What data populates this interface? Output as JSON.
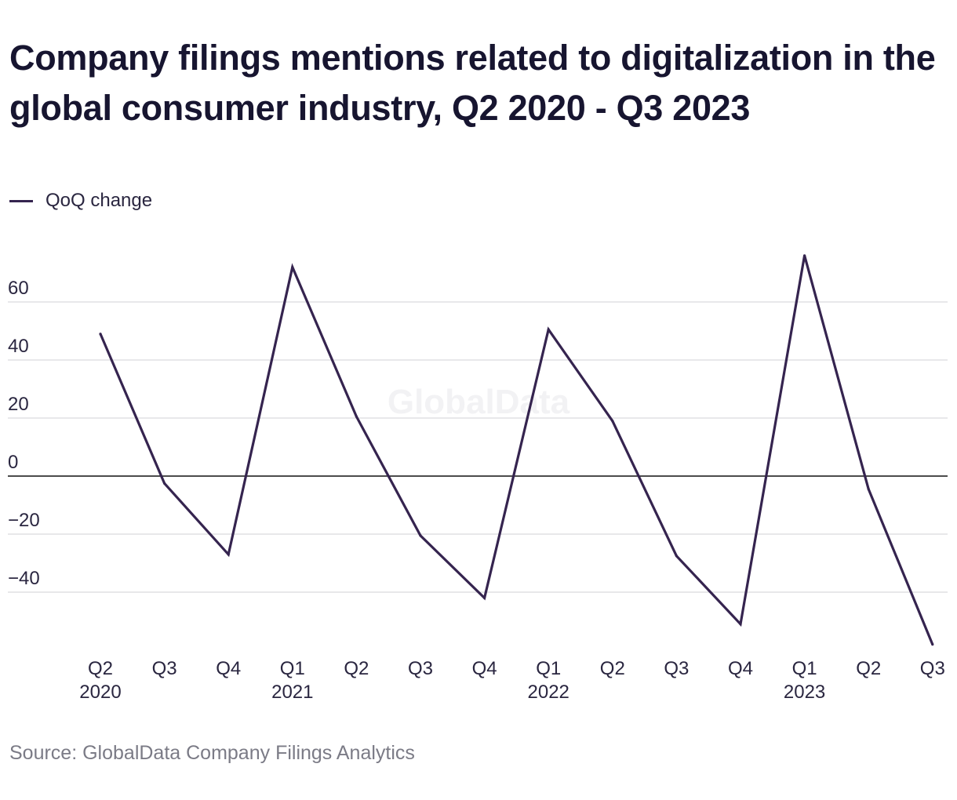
{
  "title": "Company filings mentions related to digitalization in the global consumer industry, Q2 2020 - Q3 2023",
  "legend": {
    "label": "QoQ change",
    "color": "#35244f"
  },
  "source": "Source: GlobalData Company Filings Analytics",
  "watermark": "GlobalData",
  "chart_data": {
    "type": "line",
    "title": "Company filings mentions related to digitalization in the global consumer industry, Q2 2020 - Q3 2023",
    "xlabel": "",
    "ylabel": "",
    "categories": [
      "Q2",
      "Q3",
      "Q4",
      "Q1",
      "Q2",
      "Q3",
      "Q4",
      "Q1",
      "Q2",
      "Q3",
      "Q4",
      "Q1",
      "Q2",
      "Q3"
    ],
    "year_labels": [
      "2020",
      "",
      "",
      "2021",
      "",
      "",
      "",
      "2022",
      "",
      "",
      "",
      "2023",
      "",
      ""
    ],
    "series": [
      {
        "name": "QoQ change",
        "color": "#35244f",
        "values": [
          49,
          -2.5,
          -27,
          72,
          20.5,
          -20.5,
          -42,
          50.5,
          19,
          -27.5,
          -51,
          76,
          -4.5,
          -58
        ]
      }
    ],
    "yticks": [
      -40,
      -20,
      0,
      20,
      40,
      60
    ],
    "ytick_labels": [
      "−40",
      "−20",
      "0",
      "20",
      "40",
      "60"
    ],
    "ylim": [
      -60,
      80
    ],
    "grid": true,
    "legend_position": "top-left",
    "zero_line_color": "#111111",
    "grid_color": "#d9d9dd"
  }
}
